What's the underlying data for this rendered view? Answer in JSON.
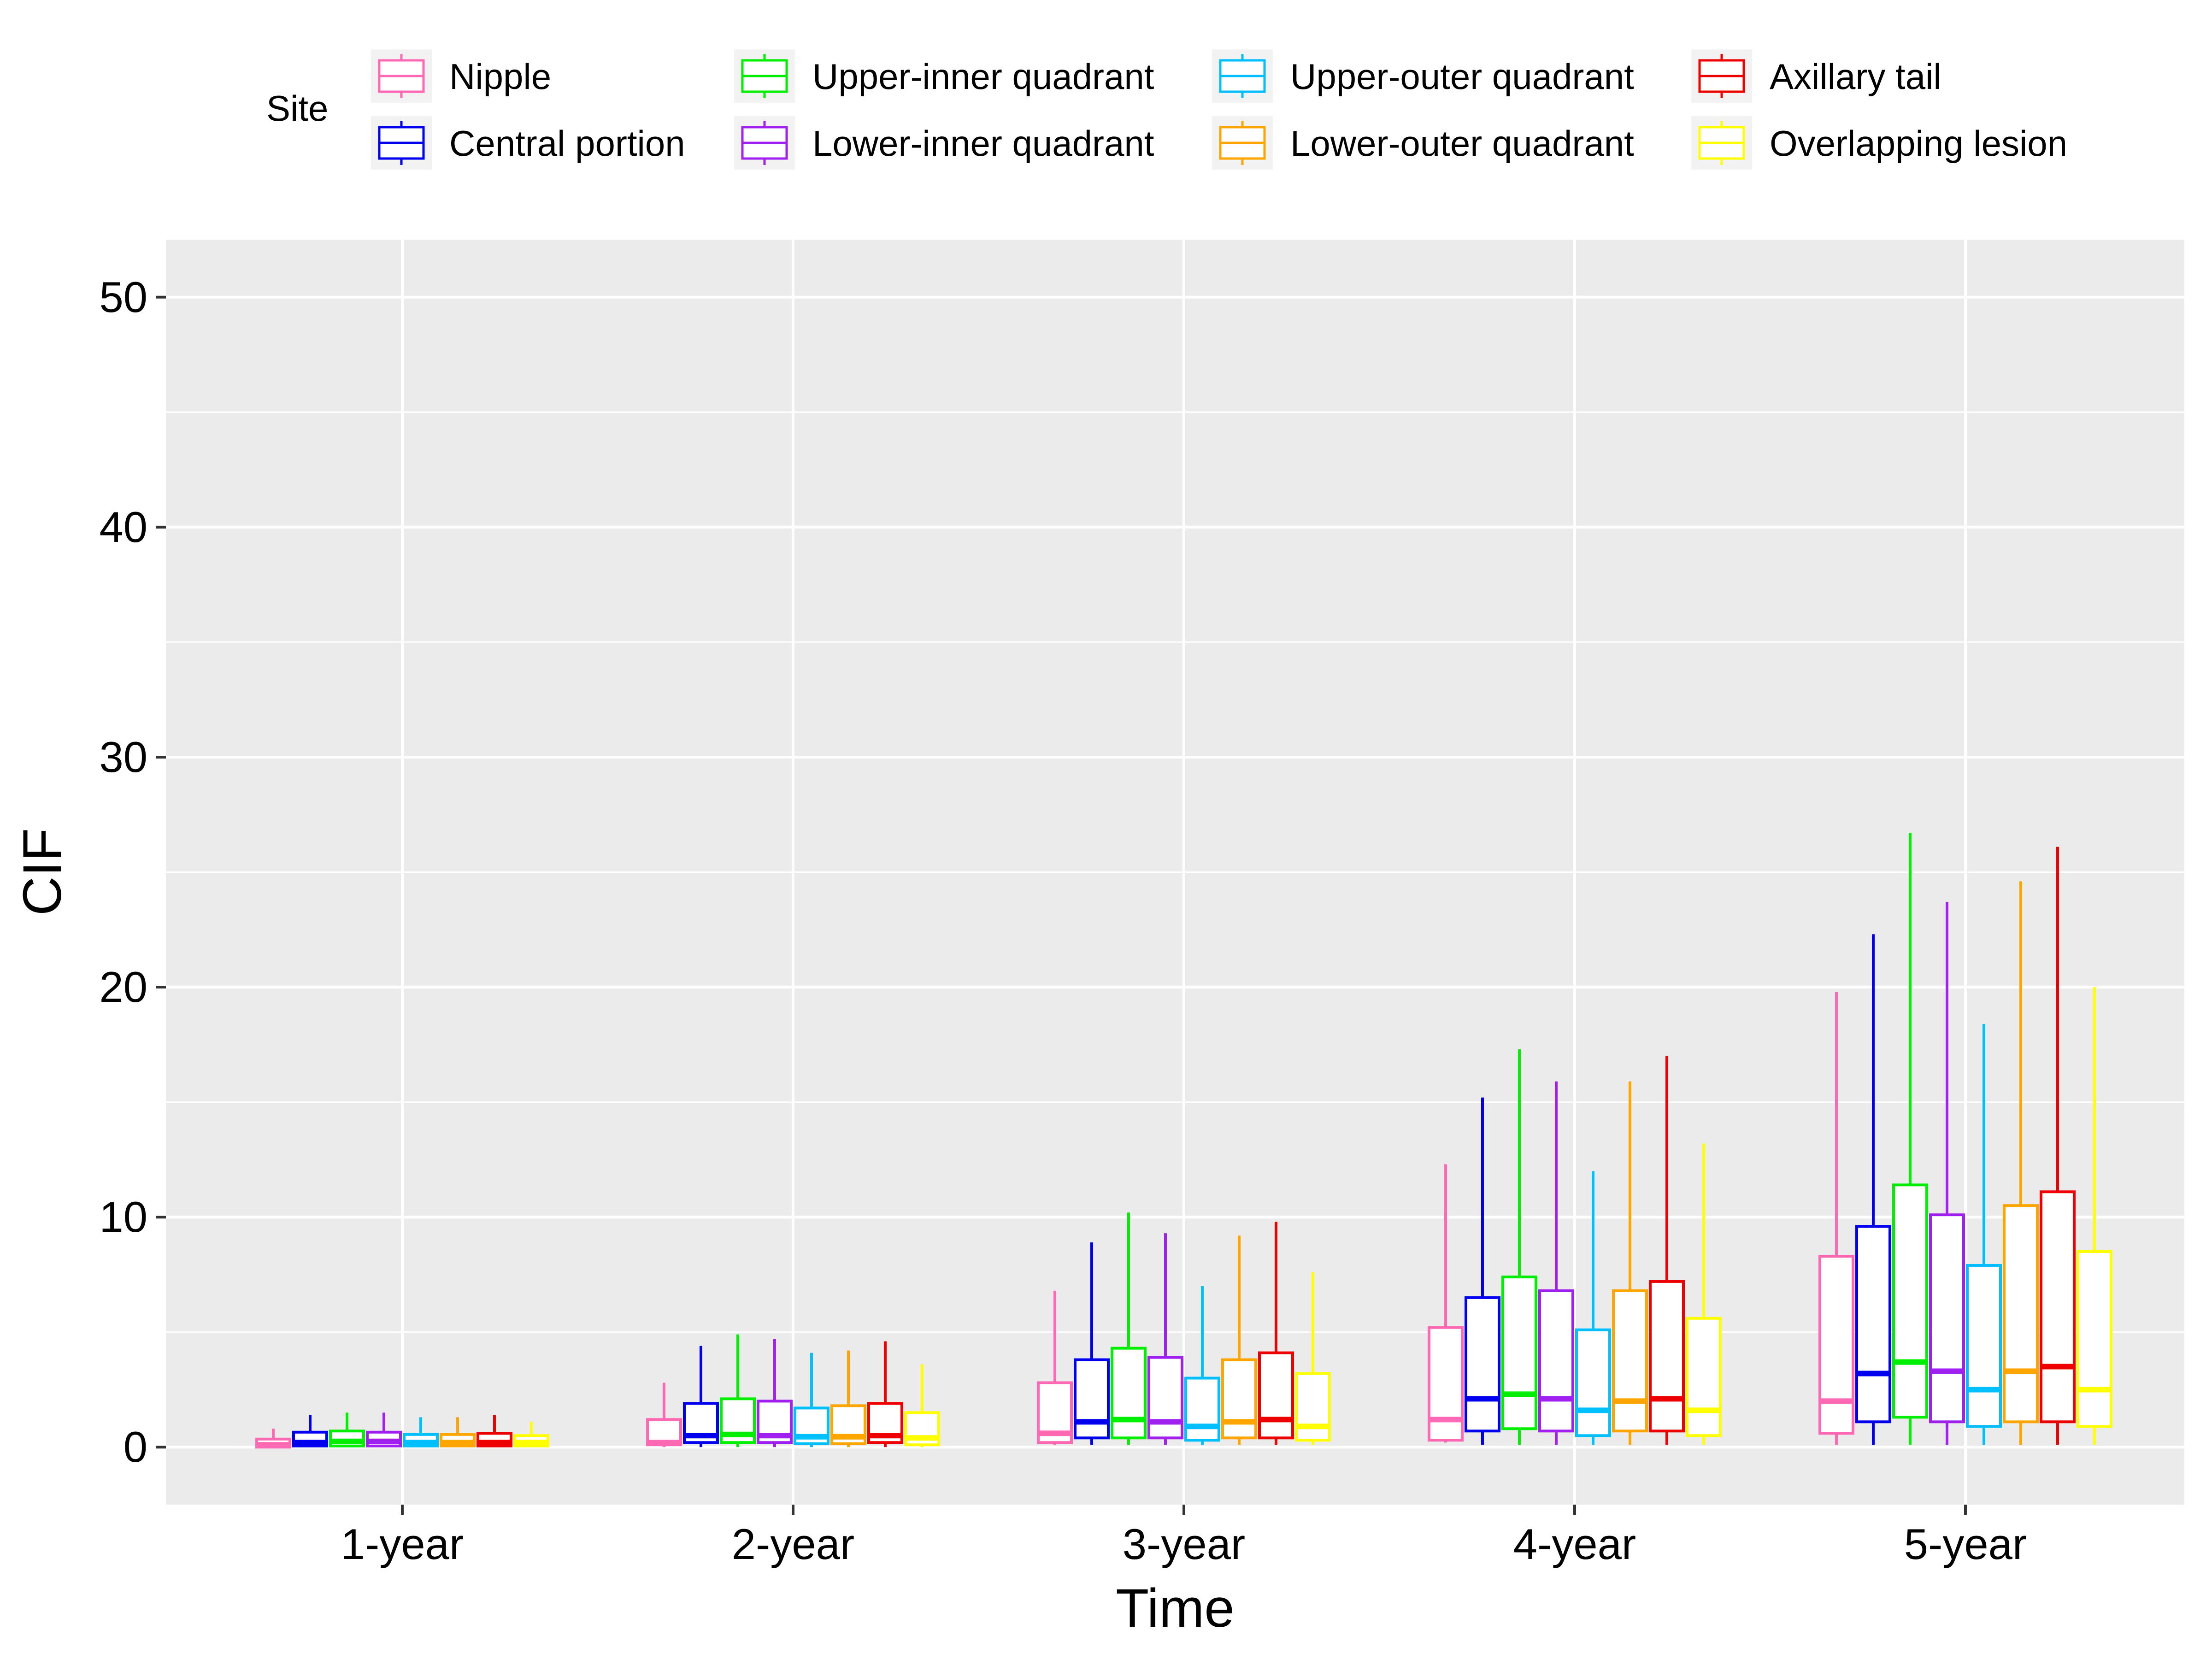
{
  "chart_data": {
    "type": "box",
    "xlabel": "Time",
    "ylabel": "CIF",
    "ylim": [
      -2.5,
      52.5
    ],
    "yticks": [
      0,
      10,
      20,
      30,
      40,
      50
    ],
    "grid": true,
    "legend": {
      "title": "Site",
      "placement": "top"
    },
    "categories": [
      "1-year",
      "2-year",
      "3-year",
      "4-year",
      "5-year"
    ],
    "series": [
      {
        "name": "Nipple",
        "color": "#FF69B4",
        "boxes": [
          {
            "min": 0.0,
            "q1": 0.0,
            "median": 0.1,
            "q3": 0.35,
            "max": 0.8
          },
          {
            "min": 0.0,
            "q1": 0.1,
            "median": 0.2,
            "q3": 1.2,
            "max": 2.8
          },
          {
            "min": 0.1,
            "q1": 0.2,
            "median": 0.6,
            "q3": 2.8,
            "max": 6.8
          },
          {
            "min": 0.2,
            "q1": 0.3,
            "median": 1.2,
            "q3": 5.2,
            "max": 12.3
          },
          {
            "min": 0.1,
            "q1": 0.6,
            "median": 2.0,
            "q3": 8.3,
            "max": 19.8
          }
        ]
      },
      {
        "name": "Central portion",
        "color": "#0000EE",
        "boxes": [
          {
            "min": 0.0,
            "q1": 0.05,
            "median": 0.2,
            "q3": 0.65,
            "max": 1.4
          },
          {
            "min": 0.0,
            "q1": 0.2,
            "median": 0.5,
            "q3": 1.9,
            "max": 4.4
          },
          {
            "min": 0.1,
            "q1": 0.4,
            "median": 1.1,
            "q3": 3.8,
            "max": 8.9
          },
          {
            "min": 0.1,
            "q1": 0.7,
            "median": 2.1,
            "q3": 6.5,
            "max": 15.2
          },
          {
            "min": 0.1,
            "q1": 1.1,
            "median": 3.2,
            "q3": 9.6,
            "max": 22.3
          }
        ]
      },
      {
        "name": "Upper-inner quadrant",
        "color": "#00EE00",
        "boxes": [
          {
            "min": 0.0,
            "q1": 0.05,
            "median": 0.25,
            "q3": 0.7,
            "max": 1.5
          },
          {
            "min": 0.0,
            "q1": 0.2,
            "median": 0.55,
            "q3": 2.1,
            "max": 4.9
          },
          {
            "min": 0.1,
            "q1": 0.4,
            "median": 1.2,
            "q3": 4.3,
            "max": 10.2
          },
          {
            "min": 0.1,
            "q1": 0.8,
            "median": 2.3,
            "q3": 7.4,
            "max": 17.3
          },
          {
            "min": 0.1,
            "q1": 1.3,
            "median": 3.7,
            "q3": 11.4,
            "max": 26.7
          }
        ]
      },
      {
        "name": "Lower-inner quadrant",
        "color": "#A020F0",
        "boxes": [
          {
            "min": 0.0,
            "q1": 0.05,
            "median": 0.25,
            "q3": 0.65,
            "max": 1.5
          },
          {
            "min": 0.0,
            "q1": 0.2,
            "median": 0.5,
            "q3": 2.0,
            "max": 4.7
          },
          {
            "min": 0.1,
            "q1": 0.4,
            "median": 1.1,
            "q3": 3.9,
            "max": 9.3
          },
          {
            "min": 0.1,
            "q1": 0.7,
            "median": 2.1,
            "q3": 6.8,
            "max": 15.9
          },
          {
            "min": 0.1,
            "q1": 1.1,
            "median": 3.3,
            "q3": 10.1,
            "max": 23.7
          }
        ]
      },
      {
        "name": "Upper-outer quadrant",
        "color": "#00BFFF",
        "boxes": [
          {
            "min": 0.0,
            "q1": 0.05,
            "median": 0.2,
            "q3": 0.55,
            "max": 1.3
          },
          {
            "min": 0.0,
            "q1": 0.15,
            "median": 0.45,
            "q3": 1.7,
            "max": 4.1
          },
          {
            "min": 0.1,
            "q1": 0.3,
            "median": 0.9,
            "q3": 3.0,
            "max": 7.0
          },
          {
            "min": 0.1,
            "q1": 0.5,
            "median": 1.6,
            "q3": 5.1,
            "max": 12.0
          },
          {
            "min": 0.1,
            "q1": 0.9,
            "median": 2.5,
            "q3": 7.9,
            "max": 18.4
          }
        ]
      },
      {
        "name": "Lower-outer quadrant",
        "color": "#FFA500",
        "boxes": [
          {
            "min": 0.0,
            "q1": 0.05,
            "median": 0.2,
            "q3": 0.55,
            "max": 1.3
          },
          {
            "min": 0.0,
            "q1": 0.15,
            "median": 0.45,
            "q3": 1.8,
            "max": 4.2
          },
          {
            "min": 0.1,
            "q1": 0.4,
            "median": 1.1,
            "q3": 3.8,
            "max": 9.2
          },
          {
            "min": 0.1,
            "q1": 0.7,
            "median": 2.0,
            "q3": 6.8,
            "max": 15.9
          },
          {
            "min": 0.1,
            "q1": 1.1,
            "median": 3.3,
            "q3": 10.5,
            "max": 24.6
          }
        ]
      },
      {
        "name": "Axillary tail",
        "color": "#EE0000",
        "boxes": [
          {
            "min": 0.0,
            "q1": 0.05,
            "median": 0.2,
            "q3": 0.6,
            "max": 1.4
          },
          {
            "min": 0.0,
            "q1": 0.2,
            "median": 0.5,
            "q3": 1.9,
            "max": 4.6
          },
          {
            "min": 0.1,
            "q1": 0.4,
            "median": 1.2,
            "q3": 4.1,
            "max": 9.8
          },
          {
            "min": 0.1,
            "q1": 0.7,
            "median": 2.1,
            "q3": 7.2,
            "max": 17.0
          },
          {
            "min": 0.1,
            "q1": 1.1,
            "median": 3.5,
            "q3": 11.1,
            "max": 26.1
          }
        ]
      },
      {
        "name": "Overlapping lesion",
        "color": "#FFFF00",
        "boxes": [
          {
            "min": 0.0,
            "q1": 0.05,
            "median": 0.2,
            "q3": 0.5,
            "max": 1.1
          },
          {
            "min": 0.0,
            "q1": 0.1,
            "median": 0.4,
            "q3": 1.5,
            "max": 3.6
          },
          {
            "min": 0.1,
            "q1": 0.3,
            "median": 0.9,
            "q3": 3.2,
            "max": 7.6
          },
          {
            "min": 0.1,
            "q1": 0.5,
            "median": 1.6,
            "q3": 5.6,
            "max": 13.2
          },
          {
            "min": 0.1,
            "q1": 0.9,
            "median": 2.5,
            "q3": 8.5,
            "max": 20.0
          }
        ]
      }
    ]
  }
}
